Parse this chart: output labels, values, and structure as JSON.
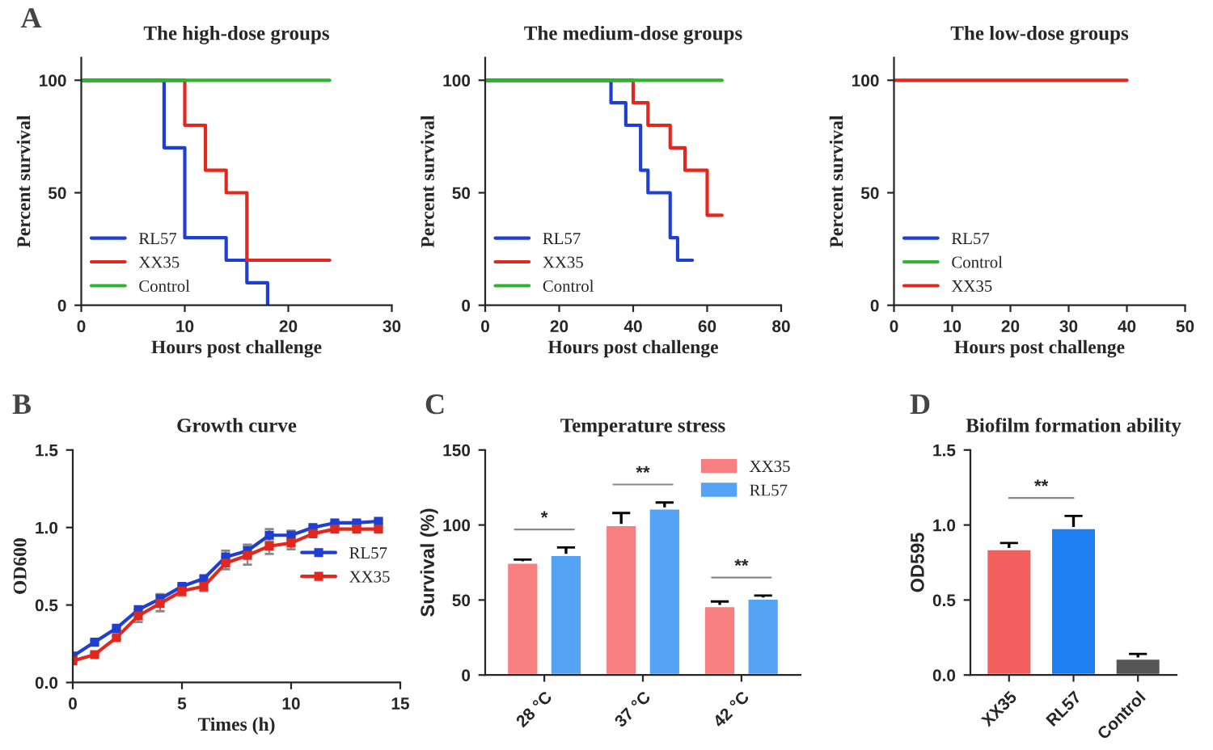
{
  "chart_data": [
    {
      "type": "step",
      "title": "The high-dose groups",
      "xlabel": "Hours post challenge",
      "ylabel": "Percent survival",
      "annotations": [
        "A"
      ],
      "xlim": [
        0,
        30
      ],
      "xticks": [
        0,
        10,
        20,
        30
      ],
      "ylim": [
        0,
        110
      ],
      "yticks": [
        0,
        50,
        100
      ],
      "legend": "bottom left",
      "series": [
        {
          "name": "RL57",
          "color": "#1f3fd0",
          "x": [
            0,
            8,
            10,
            14,
            16,
            18
          ],
          "values": [
            100,
            70,
            30,
            20,
            10,
            0
          ]
        },
        {
          "name": "XX35",
          "color": "#e0281e",
          "x": [
            0,
            10,
            12,
            14,
            16,
            24
          ],
          "values": [
            100,
            80,
            60,
            50,
            20,
            20
          ]
        },
        {
          "name": "Control",
          "color": "#2db52d",
          "x": [
            0,
            24
          ],
          "values": [
            100,
            100
          ]
        }
      ]
    },
    {
      "type": "step",
      "title": "The medium-dose groups",
      "xlabel": "Hours post challenge",
      "ylabel": "Percent survival",
      "xlim": [
        0,
        80
      ],
      "xticks": [
        0,
        20,
        40,
        60,
        80
      ],
      "ylim": [
        0,
        110
      ],
      "yticks": [
        0,
        50,
        100
      ],
      "legend": "bottom left",
      "series": [
        {
          "name": "RL57",
          "color": "#1f3fd0",
          "x": [
            0,
            34,
            38,
            42,
            44,
            50,
            52,
            56
          ],
          "values": [
            100,
            90,
            80,
            60,
            50,
            30,
            20,
            20
          ]
        },
        {
          "name": "XX35",
          "color": "#e0281e",
          "x": [
            0,
            40,
            44,
            50,
            54,
            60,
            64
          ],
          "values": [
            100,
            90,
            80,
            70,
            60,
            40,
            40
          ]
        },
        {
          "name": "Control",
          "color": "#2db52d",
          "x": [
            0,
            64
          ],
          "values": [
            100,
            100
          ]
        }
      ]
    },
    {
      "type": "step",
      "title": "The low-dose groups",
      "xlabel": "Hours post challenge",
      "ylabel": "Percent survival",
      "xlim": [
        0,
        50
      ],
      "xticks": [
        0,
        10,
        20,
        30,
        40,
        50
      ],
      "ylim": [
        0,
        110
      ],
      "yticks": [
        0,
        50,
        100
      ],
      "legend": "bottom left",
      "series": [
        {
          "name": "RL57",
          "color": "#1f3fd0"
        },
        {
          "name": "Control",
          "color": "#2db52d"
        },
        {
          "name": "XX35",
          "color": "#e0281e",
          "x": [
            0,
            40
          ],
          "values": [
            100,
            100
          ]
        }
      ]
    },
    {
      "type": "line",
      "title": "Growth curve",
      "xlabel": "Times (h)",
      "ylabel": "OD600",
      "annotations": [
        "B"
      ],
      "x": [
        0,
        1,
        2,
        3,
        4,
        5,
        6,
        7,
        8,
        9,
        10,
        11,
        12,
        13,
        14
      ],
      "xlim": [
        0,
        15
      ],
      "xticks": [
        0,
        5,
        10,
        15
      ],
      "ylim": [
        0,
        1.5
      ],
      "yticks": [
        {
          "value": 0,
          "label": "0.0"
        },
        {
          "value": 0.5,
          "label": "0.5"
        },
        {
          "value": 1,
          "label": "1.0"
        },
        {
          "value": 1.5,
          "label": "1.5"
        }
      ],
      "legend": "right",
      "marker": "square",
      "series": [
        {
          "name": "RL57",
          "color": "#1f3fd0",
          "values": [
            0.17,
            0.26,
            0.35,
            0.47,
            0.54,
            0.62,
            0.67,
            0.81,
            0.85,
            0.95,
            0.95,
            1.0,
            1.03,
            1.03,
            1.04
          ],
          "errors": [
            0.01,
            0.01,
            0.01,
            null,
            0.03,
            0.01,
            null,
            0.04,
            0.04,
            0.04,
            0.03,
            0.01,
            0.01,
            0.01,
            0.01
          ]
        },
        {
          "name": "XX35",
          "color": "#e0281e",
          "values": [
            0.14,
            0.18,
            0.29,
            0.43,
            0.51,
            0.59,
            0.62,
            0.77,
            0.82,
            0.88,
            0.9,
            0.96,
            0.99,
            0.99,
            0.99
          ],
          "errors": [
            0.01,
            0.01,
            0.01,
            0.04,
            0.05,
            0.03,
            0.03,
            0.04,
            0.06,
            0.05,
            0.04,
            0.01,
            null,
            null,
            0.01
          ]
        }
      ]
    },
    {
      "type": "bar",
      "title": "Temperature stress",
      "ylabel": "Survival (%)",
      "categories": [
        "28 °C",
        "37 °C",
        "42 °C"
      ],
      "ylim": [
        0,
        150
      ],
      "yticks": [
        0,
        50,
        100,
        150
      ],
      "legend": "top right",
      "annotations": [
        "C",
        "*",
        "**",
        "**"
      ],
      "series": [
        {
          "name": "XX35",
          "color": "#f77f7f",
          "values": [
            75,
            100,
            46
          ],
          "errors": [
            2,
            8,
            3
          ]
        },
        {
          "name": "RL57",
          "color": "#55a3f5",
          "values": [
            80,
            111,
            51
          ],
          "errors": [
            5,
            4,
            2
          ]
        }
      ]
    },
    {
      "type": "bar",
      "title": "Biofilm formation ability",
      "ylabel": "OD595",
      "categories": [
        "XX35",
        "RL57",
        "Control"
      ],
      "ylim": [
        0,
        1.5
      ],
      "yticks": [
        {
          "value": 0,
          "label": "0.0"
        },
        {
          "value": 0.5,
          "label": "0.5"
        },
        {
          "value": 1,
          "label": "1.0"
        },
        {
          "value": 1.5,
          "label": "1.5"
        }
      ],
      "annotations": [
        "D",
        "**"
      ],
      "values": [
        0.84,
        0.98,
        0.11
      ],
      "colors": [
        "#f46060",
        "#1f7ff0",
        "#555555"
      ],
      "errors": [
        0.04,
        0.08,
        0.03
      ]
    }
  ]
}
